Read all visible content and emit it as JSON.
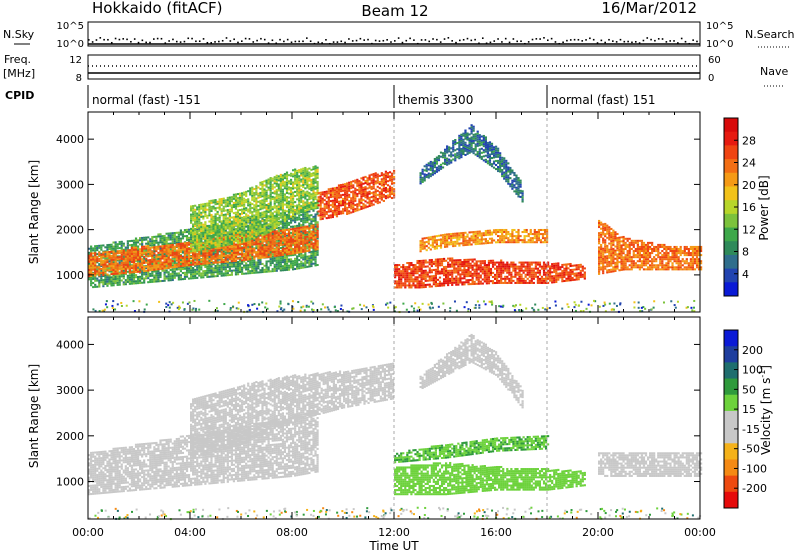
{
  "header": {
    "title": "Hokkaido (fitACF)",
    "beam": "Beam 12",
    "date": "16/Mar/2012"
  },
  "top_panels": {
    "nsky_label": "N.Sky",
    "nsearch_label": "N.Search",
    "nsky_ticks": [
      "10^5",
      "10^0"
    ],
    "nsearch_ticks": [
      "10^5",
      "10^0"
    ],
    "freq_label_1": "Freq.",
    "freq_label_2": "[MHz]",
    "freq_ticks": [
      "12",
      "8"
    ],
    "nave_label": "Nave",
    "nave_ticks": [
      "60",
      "0"
    ],
    "cpid_label": "CPID",
    "cpid_segments": [
      {
        "label": "normal (fast) -151",
        "start_h": 0,
        "end_h": 12
      },
      {
        "label": "themis 3300",
        "start_h": 12,
        "end_h": 18
      },
      {
        "label": "normal (fast) 151",
        "start_h": 18,
        "end_h": 24
      }
    ]
  },
  "colorbars": {
    "power": {
      "label": "Power [dB]",
      "ticks": [
        "28",
        "24",
        "20",
        "16",
        "12",
        "8",
        "4"
      ],
      "colors": [
        "#0a1ad6",
        "#2244b0",
        "#2f6e8c",
        "#2f8a5a",
        "#3ea84a",
        "#7cc23c",
        "#b7d62a",
        "#f2c21a",
        "#f59a16",
        "#f36e14",
        "#ef4412",
        "#e61a10",
        "#d80a0a"
      ]
    },
    "velocity": {
      "label": "Velocity [m s",
      "label_sup": "-1",
      "label_close": "]",
      "ticks": [
        "200",
        "100",
        "50",
        "15",
        "-15",
        "-50",
        "-100",
        "-200"
      ],
      "colors": [
        "#e60b0b",
        "#ee4a10",
        "#f58a14",
        "#f5b21a",
        "#c8c8c8",
        "#c8c8c8",
        "#6dd23c",
        "#2f9a3c",
        "#1f6e6e",
        "#1f3e9e",
        "#0b1ad6"
      ]
    }
  },
  "chart_data": [
    {
      "type": "heatmap",
      "title": "Power",
      "ylabel": "Slant Range [km]",
      "xlabel": "",
      "xlim": [
        0,
        24
      ],
      "ylim": [
        180,
        4600
      ],
      "yticks": [
        "1000",
        "2000",
        "3000",
        "4000"
      ],
      "colorbar_label": "Power [dB]",
      "colorbar_range": [
        0,
        32
      ],
      "bands": [
        {
          "x": [
            0,
            2,
            4,
            6,
            8,
            9
          ],
          "y_low": [
            700,
            800,
            900,
            1000,
            1100,
            1200
          ],
          "y_high": [
            1600,
            1800,
            2000,
            2200,
            2400,
            2600
          ],
          "level": 10
        },
        {
          "x": [
            0,
            2,
            4,
            6,
            8,
            9
          ],
          "y_low": [
            950,
            1050,
            1200,
            1300,
            1450,
            1550
          ],
          "y_high": [
            1450,
            1600,
            1700,
            1900,
            2000,
            2100
          ],
          "level": 24
        },
        {
          "x": [
            4,
            6,
            7,
            8,
            9
          ],
          "y_low": [
            1500,
            1700,
            1900,
            2300,
            2500
          ],
          "y_high": [
            2500,
            2800,
            3100,
            3300,
            3400
          ],
          "level": 14
        },
        {
          "x": [
            9,
            10,
            11,
            12
          ],
          "y_low": [
            2200,
            2300,
            2500,
            2700
          ],
          "y_high": [
            2800,
            3000,
            3200,
            3300
          ],
          "level": 26
        },
        {
          "x": [
            12,
            13,
            14,
            16,
            18,
            19.5
          ],
          "y_low": [
            700,
            700,
            750,
            800,
            800,
            900
          ],
          "y_high": [
            1200,
            1300,
            1350,
            1300,
            1250,
            1200
          ],
          "level": 27
        },
        {
          "x": [
            13,
            14,
            16,
            18
          ],
          "y_low": [
            1500,
            1600,
            1700,
            1700
          ],
          "y_high": [
            1800,
            1900,
            2000,
            2000
          ],
          "level": 22
        },
        {
          "x": [
            20,
            21,
            22,
            23,
            24
          ],
          "y_low": [
            1000,
            1100,
            1100,
            1100,
            1100
          ],
          "y_high": [
            2200,
            1800,
            1700,
            1600,
            1600
          ],
          "level": 24
        },
        {
          "x": [
            13,
            14,
            15,
            16,
            17
          ],
          "y_low": [
            3000,
            3400,
            3700,
            3300,
            2600
          ],
          "y_high": [
            3300,
            3800,
            4300,
            3800,
            3000
          ],
          "level": 6
        }
      ]
    },
    {
      "type": "heatmap",
      "title": "Velocity",
      "ylabel": "Slant Range [km]",
      "xlabel": "Time UT",
      "xlim": [
        0,
        24
      ],
      "ylim": [
        180,
        4600
      ],
      "yticks": [
        "1000",
        "2000",
        "3000",
        "4000"
      ],
      "xticks": [
        "00:00",
        "04:00",
        "08:00",
        "12:00",
        "16:00",
        "20:00",
        "00:00"
      ],
      "xtick_hours": [
        0,
        4,
        8,
        12,
        16,
        20,
        24
      ],
      "colorbar_label": "Velocity [m s-1]",
      "colorbar_range": [
        -250,
        250
      ],
      "bands": [
        {
          "x": [
            0,
            2,
            4,
            6,
            8,
            9
          ],
          "y_low": [
            700,
            800,
            900,
            1000,
            1100,
            1200
          ],
          "y_high": [
            1600,
            1800,
            2000,
            2200,
            2400,
            2600
          ],
          "level": 0
        },
        {
          "x": [
            4,
            6,
            8,
            10,
            12
          ],
          "y_low": [
            1500,
            1800,
            2300,
            2600,
            2800
          ],
          "y_high": [
            2800,
            3100,
            3300,
            3400,
            3600
          ],
          "level": 5
        },
        {
          "x": [
            12,
            14,
            16,
            18,
            19.5
          ],
          "y_low": [
            700,
            700,
            800,
            800,
            900
          ],
          "y_high": [
            1300,
            1400,
            1300,
            1250,
            1200
          ],
          "level": 45
        },
        {
          "x": [
            12,
            14,
            16,
            18
          ],
          "y_low": [
            1400,
            1500,
            1650,
            1700
          ],
          "y_high": [
            1600,
            1800,
            1950,
            2000
          ],
          "level": 70
        },
        {
          "x": [
            20,
            22,
            24
          ],
          "y_low": [
            1100,
            1100,
            1100
          ],
          "y_high": [
            1600,
            1600,
            1600
          ],
          "level": 5
        },
        {
          "x": [
            13,
            15,
            16,
            17
          ],
          "y_low": [
            3000,
            3600,
            3300,
            2600
          ],
          "y_high": [
            3300,
            4200,
            3800,
            3000
          ],
          "level": -40
        }
      ]
    }
  ]
}
